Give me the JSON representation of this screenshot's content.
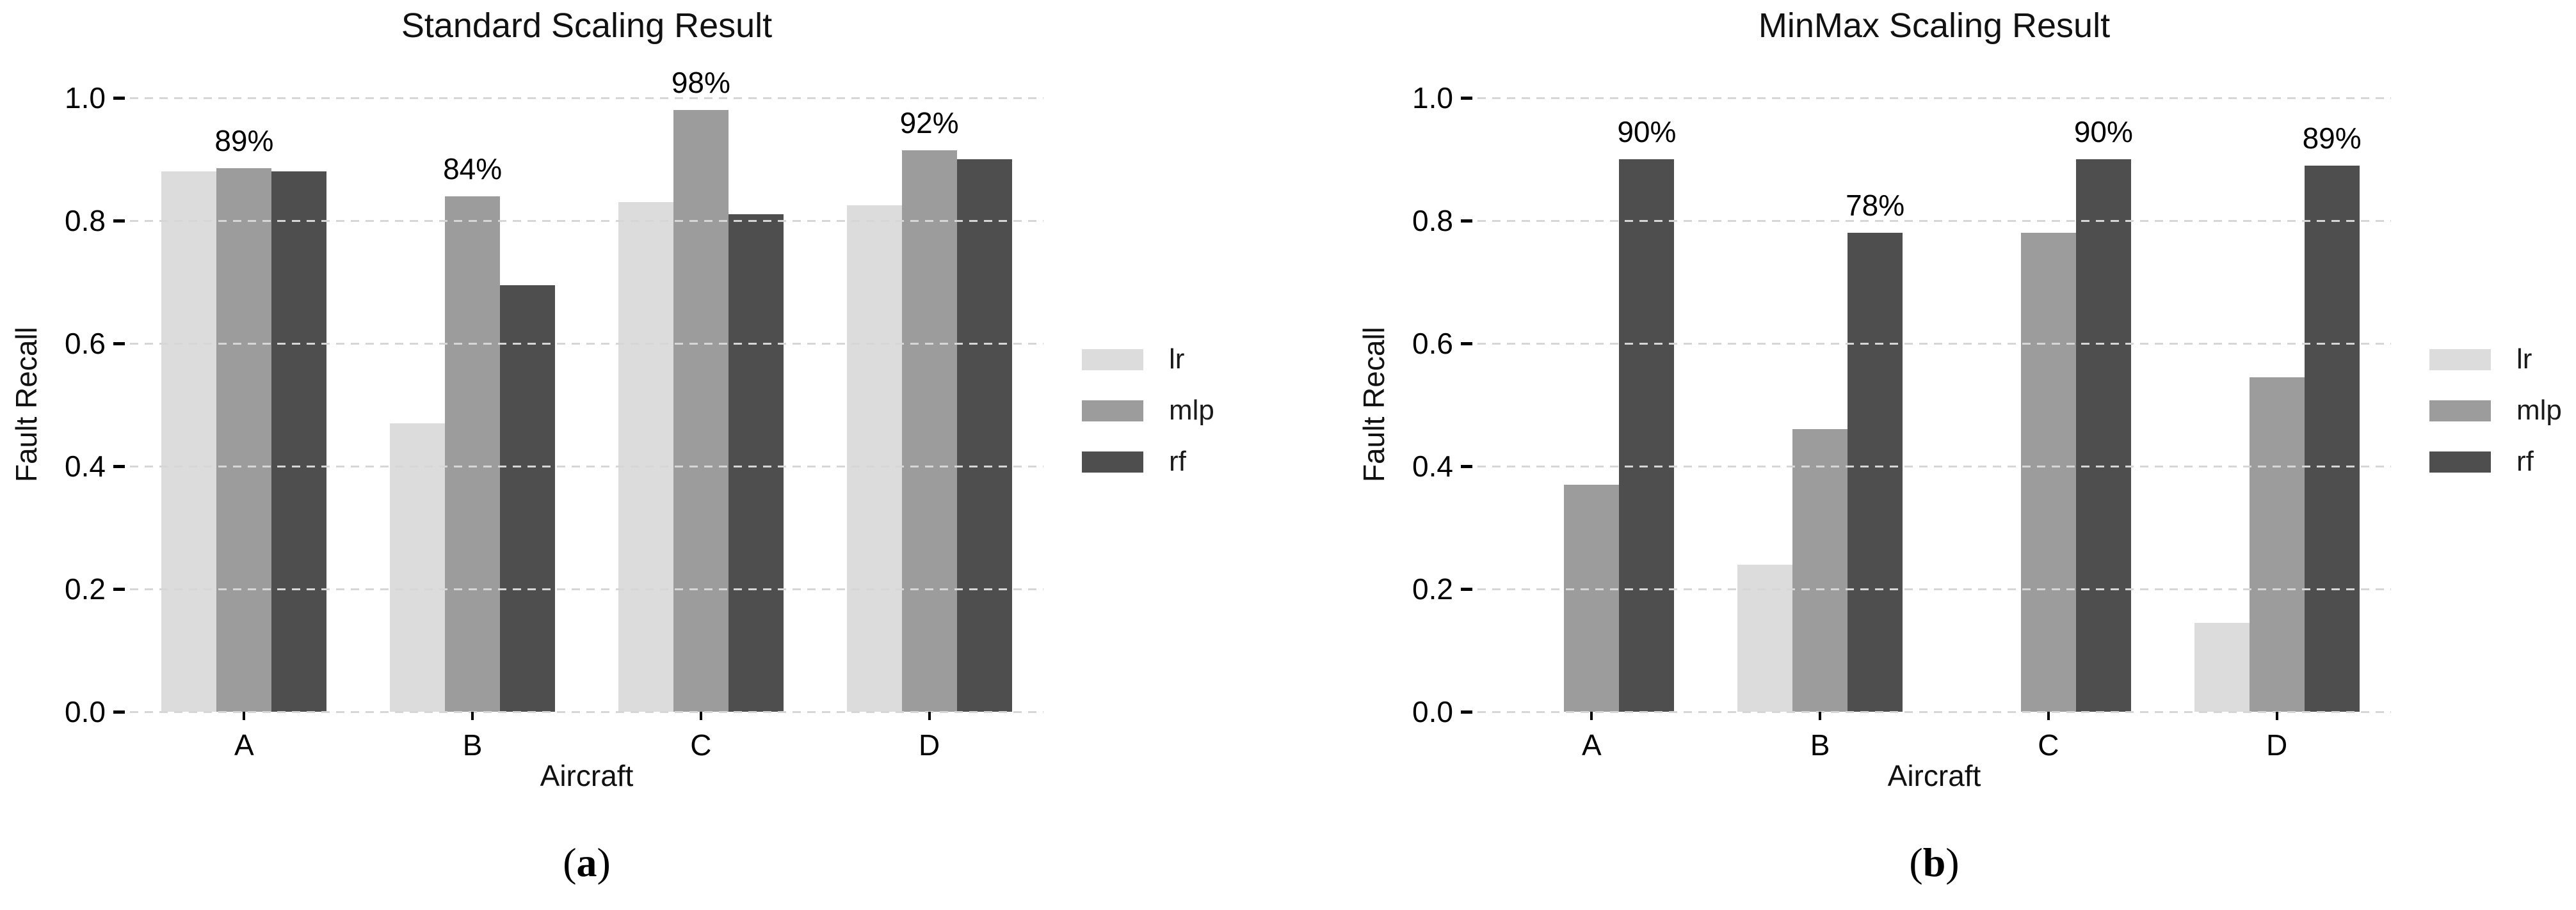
{
  "figure_background": "#ffffff",
  "grid_color": "#d6d6d6",
  "text_color": "#000000",
  "chart_data": [
    {
      "type": "bar",
      "title": "Standard Scaling Result",
      "xlabel": "Aircraft",
      "ylabel": "Fault Recall",
      "categories": [
        "A",
        "B",
        "C",
        "D"
      ],
      "series": [
        {
          "name": "lr",
          "color": "#dcdcdc",
          "values": [
            0.88,
            0.47,
            0.83,
            0.825
          ]
        },
        {
          "name": "mlp",
          "color": "#9c9c9c",
          "values": [
            0.885,
            0.84,
            0.98,
            0.915
          ]
        },
        {
          "name": "rf",
          "color": "#4e4e4e",
          "values": [
            0.88,
            0.695,
            0.81,
            0.9
          ]
        }
      ],
      "bar_labels": {
        "on_series": "mlp",
        "texts": [
          "89%",
          "84%",
          "98%",
          "92%"
        ]
      },
      "ylim": [
        0.0,
        1.0
      ],
      "yticks": [
        "0.0",
        "0.2",
        "0.4",
        "0.6",
        "0.8",
        "1.0"
      ],
      "grid": "horizontal-dashed",
      "legend": {
        "position": "right",
        "entries": [
          "lr",
          "mlp",
          "rf"
        ]
      },
      "caption": "(a)"
    },
    {
      "type": "bar",
      "title": "MinMax Scaling Result",
      "xlabel": "Aircraft",
      "ylabel": "Fault Recall",
      "categories": [
        "A",
        "B",
        "C",
        "D"
      ],
      "series": [
        {
          "name": "lr",
          "color": "#dcdcdc",
          "values": [
            0.0,
            0.24,
            0.0,
            0.145
          ]
        },
        {
          "name": "mlp",
          "color": "#9c9c9c",
          "values": [
            0.37,
            0.46,
            0.78,
            0.545
          ]
        },
        {
          "name": "rf",
          "color": "#4e4e4e",
          "values": [
            0.9,
            0.78,
            0.9,
            0.89
          ]
        }
      ],
      "bar_labels": {
        "on_series": "rf",
        "texts": [
          "90%",
          "78%",
          "90%",
          "89%"
        ]
      },
      "ylim": [
        0.0,
        1.0
      ],
      "yticks": [
        "0.0",
        "0.2",
        "0.4",
        "0.6",
        "0.8",
        "1.0"
      ],
      "grid": "horizontal-dashed",
      "legend": {
        "position": "right",
        "entries": [
          "lr",
          "mlp",
          "rf"
        ]
      },
      "caption": "(b)"
    }
  ]
}
